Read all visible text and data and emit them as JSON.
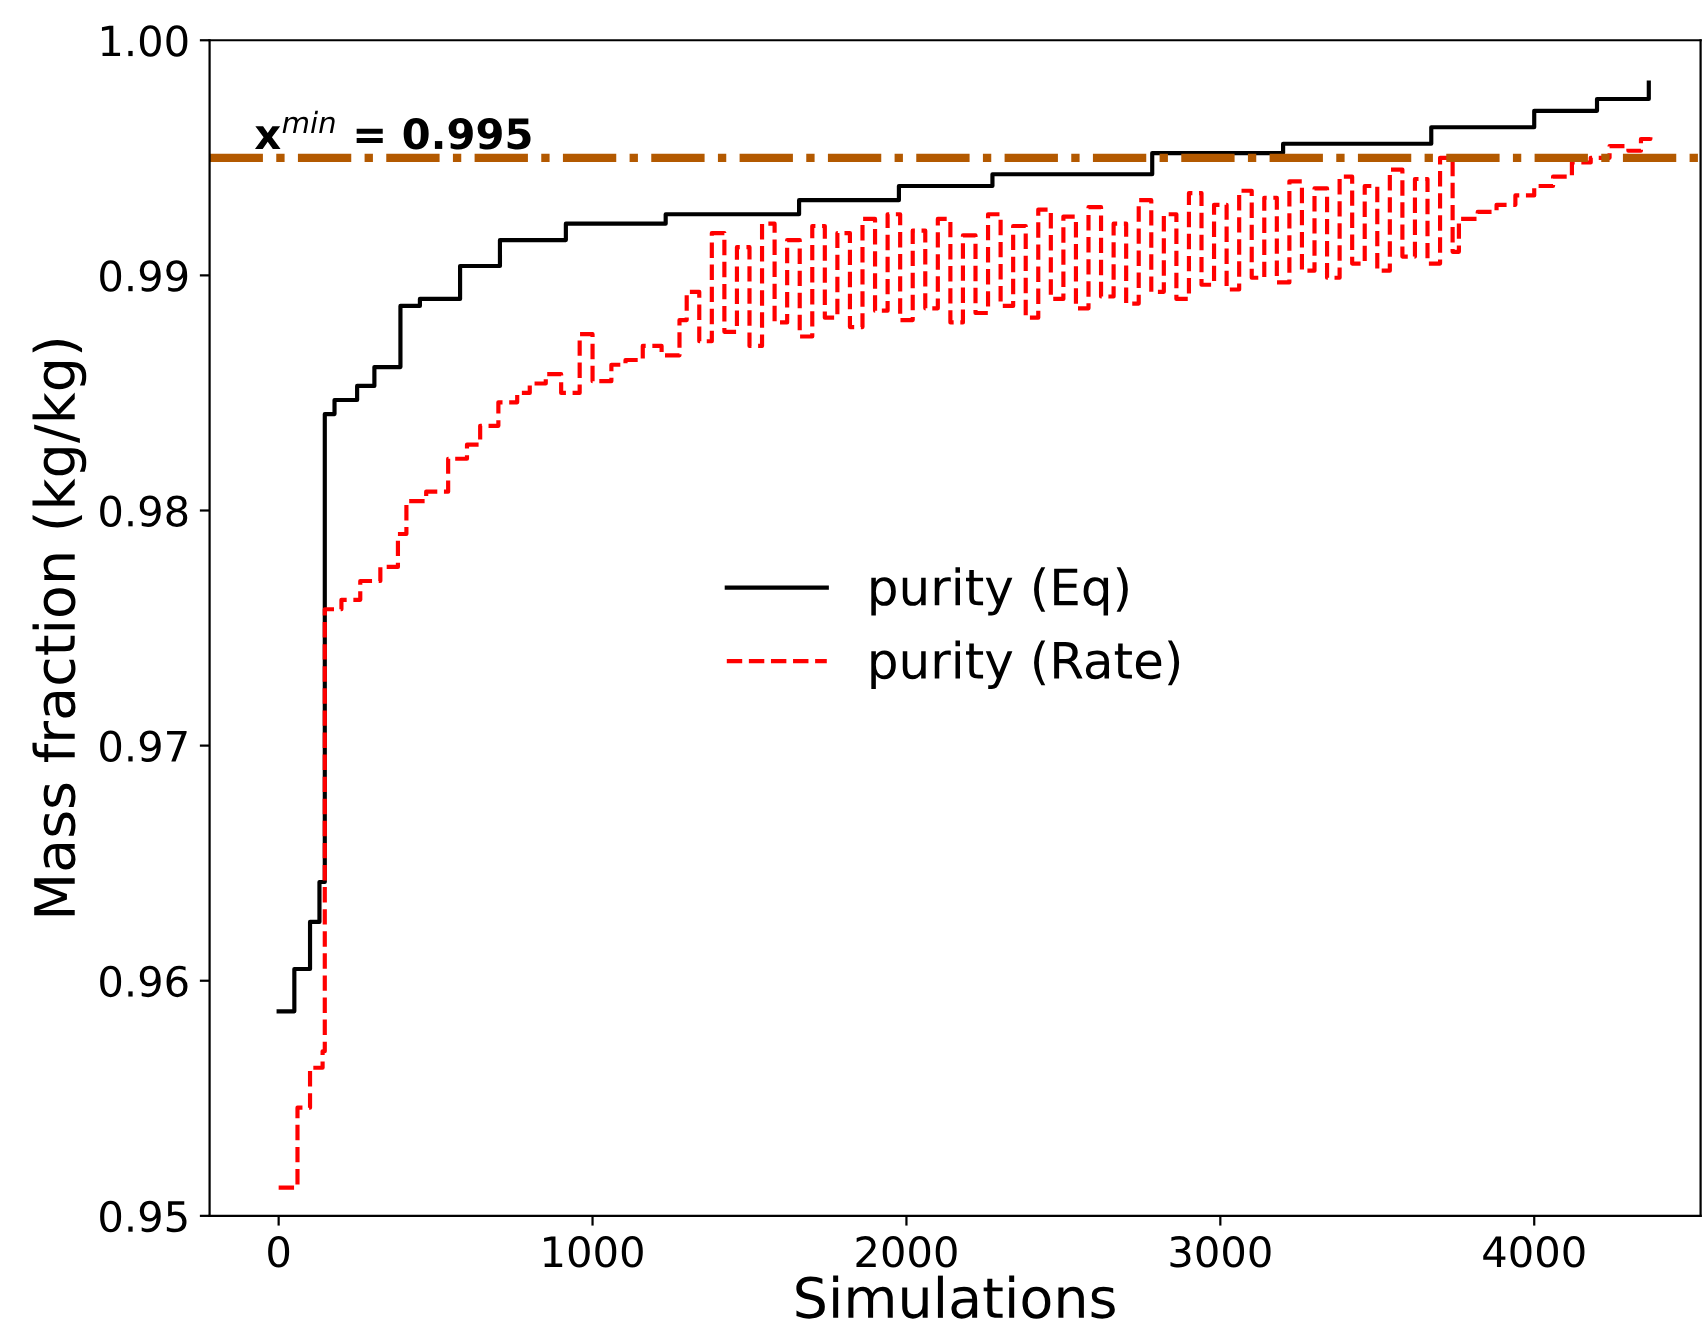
{
  "chart_data": {
    "type": "step",
    "xlabel": "Simulations",
    "ylabel": "Mass fraction (kg/kg)",
    "xlim": [
      -220,
      4530
    ],
    "xticks": [
      0,
      1000,
      2000,
      3000,
      4000
    ],
    "ylim": [
      0.95,
      1.0
    ],
    "yticks": [
      0.95,
      0.96,
      0.97,
      0.98,
      0.99,
      {
        "value": 1.0,
        "label": "1.00"
      }
    ],
    "legend": "center",
    "grid": false,
    "ref_lines": [
      {
        "axis": "y",
        "value": 0.995,
        "label": "x$^{min}$ = 0.995",
        "color": "#b35900",
        "line_style": "dashdot"
      }
    ],
    "series": [
      {
        "name": "purity (Eq)",
        "color": "#000000",
        "line_style": "solid",
        "x": [
          0,
          50,
          100,
          130,
          147,
          178,
          250,
          305,
          388,
          450,
          578,
          705,
          915,
          1233,
          1658,
          1976,
          2274,
          2783,
          3200,
          3672,
          4000,
          4200,
          4365
        ],
        "values": [
          0.9587,
          0.9605,
          0.9625,
          0.9642,
          0.9841,
          0.9847,
          0.9853,
          0.9861,
          0.9887,
          0.989,
          0.9904,
          0.9915,
          0.9922,
          0.9926,
          0.9932,
          0.9938,
          0.9943,
          0.9952,
          0.9956,
          0.9963,
          0.997,
          0.9975,
          0.9982
        ]
      },
      {
        "name": "purity (Rate)",
        "color": "#ff0000",
        "line_style": "dashed",
        "x": [
          0,
          60,
          100,
          140,
          147,
          200,
          260,
          324,
          380,
          407,
          470,
          540,
          600,
          642,
          700,
          760,
          800,
          851,
          900,
          959,
          1000,
          1060,
          1105,
          1160,
          1220,
          1277,
          1300,
          1340,
          1380,
          1420,
          1460,
          1500,
          1540,
          1580,
          1620,
          1660,
          1700,
          1740,
          1780,
          1820,
          1860,
          1900,
          1940,
          1980,
          2020,
          2060,
          2100,
          2140,
          2180,
          2220,
          2260,
          2300,
          2340,
          2380,
          2420,
          2460,
          2500,
          2540,
          2580,
          2620,
          2660,
          2700,
          2740,
          2780,
          2820,
          2860,
          2900,
          2940,
          2980,
          3020,
          3060,
          3100,
          3140,
          3180,
          3220,
          3260,
          3300,
          3340,
          3380,
          3420,
          3460,
          3500,
          3540,
          3580,
          3620,
          3660,
          3700,
          3740,
          3760,
          3820,
          3880,
          3940,
          4000,
          4060,
          4120,
          4180,
          4240,
          4300,
          4340,
          4370
        ],
        "values": [
          0.9512,
          0.9546,
          0.9563,
          0.957,
          0.9758,
          0.9762,
          0.977,
          0.9776,
          0.979,
          0.9804,
          0.9808,
          0.9822,
          0.9828,
          0.9836,
          0.9846,
          0.985,
          0.9854,
          0.9858,
          0.985,
          0.9875,
          0.9855,
          0.9862,
          0.9864,
          0.987,
          0.9866,
          0.9881,
          0.9893,
          0.9872,
          0.9918,
          0.9876,
          0.9912,
          0.987,
          0.9922,
          0.988,
          0.9915,
          0.9874,
          0.9921,
          0.9882,
          0.9918,
          0.9878,
          0.9924,
          0.9885,
          0.9926,
          0.9881,
          0.9919,
          0.9886,
          0.9924,
          0.988,
          0.9917,
          0.9884,
          0.9926,
          0.9887,
          0.9921,
          0.9882,
          0.9928,
          0.989,
          0.9925,
          0.9886,
          0.9929,
          0.9891,
          0.9922,
          0.9888,
          0.9932,
          0.9893,
          0.9926,
          0.989,
          0.9935,
          0.9896,
          0.993,
          0.9894,
          0.9936,
          0.9899,
          0.9933,
          0.9897,
          0.994,
          0.9902,
          0.9937,
          0.9899,
          0.9942,
          0.9905,
          0.9938,
          0.9902,
          0.9945,
          0.9908,
          0.9941,
          0.9905,
          0.995,
          0.991,
          0.9924,
          0.9927,
          0.993,
          0.9934,
          0.9938,
          0.9942,
          0.9948,
          0.995,
          0.9955,
          0.9953,
          0.9958,
          0.996
        ]
      }
    ]
  }
}
